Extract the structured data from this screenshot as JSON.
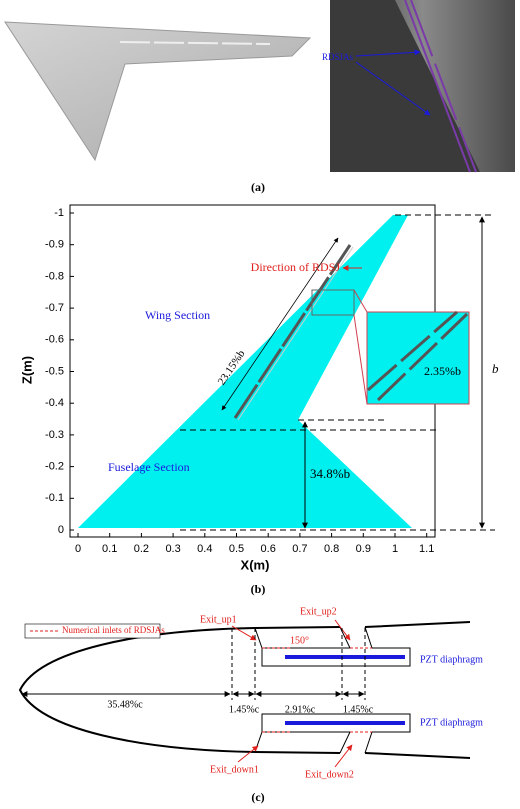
{
  "panel_a": {
    "label_rdsjas": "RDSJAs",
    "caption": "(a)"
  },
  "panel_b": {
    "direction": "Direction of RDSJ",
    "wing": "Wing Section",
    "fuselage": "Fuselage Section",
    "span": "b",
    "root_pct": "34.8%b",
    "slot_len": "23.15%b",
    "slot_w": "2.35%b",
    "xlabel": "X(m)",
    "ylabel": "Z(m)",
    "caption": "(b)",
    "xticks": [
      "0",
      "0.1",
      "0.2",
      "0.3",
      "0.4",
      "0.5",
      "0.6",
      "0.7",
      "0.8",
      "0.9",
      "1",
      "1.1"
    ],
    "yticks": [
      "-1",
      "-0.9",
      "-0.8",
      "-0.7",
      "-0.6",
      "-0.5",
      "-0.4",
      "-0.3",
      "-0.2",
      "-0.1",
      "0"
    ]
  },
  "panel_c": {
    "legend": "Numerical inlets of RDSJAs",
    "exit_up1": "Exit_up1",
    "exit_up2": "Exit_up2",
    "angle": "150°",
    "pzt_top": "PZT diaphragm",
    "pzt_bottom": "PZT diaphragm",
    "d1": "35.48%c",
    "d2": "1.45%c",
    "d3": "2.91%c",
    "d4": "1.45%c",
    "exit_down1": "Exit_down1",
    "exit_down2": "Exit_down2",
    "caption": "(c)"
  }
}
